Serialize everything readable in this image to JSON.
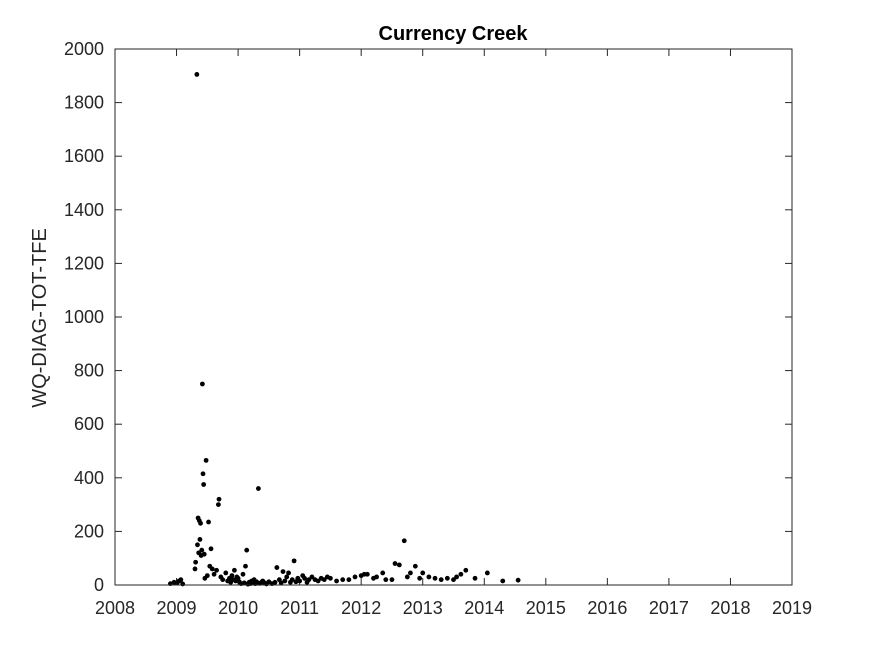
{
  "chart_data": {
    "type": "scatter",
    "title": "Currency Creek",
    "xlabel": "",
    "ylabel": "WQ-DIAG-TOT-TFE",
    "xlim": [
      2008,
      2019
    ],
    "ylim": [
      0,
      2000
    ],
    "xticks": [
      "2008",
      "2009",
      "2010",
      "2011",
      "2012",
      "2013",
      "2014",
      "2015",
      "2016",
      "2017",
      "2018",
      "2019"
    ],
    "yticks": [
      "0",
      "200",
      "400",
      "600",
      "800",
      "1000",
      "1200",
      "1400",
      "1600",
      "1800",
      "2000"
    ],
    "grid": false,
    "legend": "none",
    "marker_color": "#000000",
    "points": [
      [
        2008.9,
        5
      ],
      [
        2008.96,
        10
      ],
      [
        2009.01,
        8
      ],
      [
        2009.04,
        15
      ],
      [
        2009.07,
        20
      ],
      [
        2009.1,
        4
      ],
      [
        2009.3,
        60
      ],
      [
        2009.31,
        85
      ],
      [
        2009.33,
        1905
      ],
      [
        2009.34,
        150
      ],
      [
        2009.35,
        250
      ],
      [
        2009.36,
        120
      ],
      [
        2009.37,
        240
      ],
      [
        2009.38,
        170
      ],
      [
        2009.39,
        230
      ],
      [
        2009.4,
        110
      ],
      [
        2009.41,
        130
      ],
      [
        2009.42,
        750
      ],
      [
        2009.43,
        415
      ],
      [
        2009.44,
        375
      ],
      [
        2009.45,
        115
      ],
      [
        2009.46,
        25
      ],
      [
        2009.48,
        465
      ],
      [
        2009.5,
        35
      ],
      [
        2009.52,
        235
      ],
      [
        2009.54,
        70
      ],
      [
        2009.56,
        135
      ],
      [
        2009.58,
        60
      ],
      [
        2009.61,
        40
      ],
      [
        2009.65,
        55
      ],
      [
        2009.68,
        300
      ],
      [
        2009.69,
        320
      ],
      [
        2009.72,
        30
      ],
      [
        2009.75,
        20
      ],
      [
        2009.8,
        45
      ],
      [
        2009.83,
        15
      ],
      [
        2009.86,
        25
      ],
      [
        2009.88,
        10
      ],
      [
        2009.9,
        35
      ],
      [
        2009.92,
        20
      ],
      [
        2009.94,
        55
      ],
      [
        2009.96,
        15
      ],
      [
        2009.98,
        30
      ],
      [
        2010.0,
        25
      ],
      [
        2010.02,
        12
      ],
      [
        2010.05,
        5
      ],
      [
        2010.08,
        40
      ],
      [
        2010.1,
        8
      ],
      [
        2010.12,
        70
      ],
      [
        2010.14,
        130
      ],
      [
        2010.16,
        3
      ],
      [
        2010.18,
        10
      ],
      [
        2010.2,
        5
      ],
      [
        2010.22,
        15
      ],
      [
        2010.24,
        8
      ],
      [
        2010.26,
        20
      ],
      [
        2010.28,
        5
      ],
      [
        2010.3,
        12
      ],
      [
        2010.33,
        360
      ],
      [
        2010.35,
        6
      ],
      [
        2010.38,
        10
      ],
      [
        2010.4,
        15
      ],
      [
        2010.43,
        8
      ],
      [
        2010.46,
        4
      ],
      [
        2010.5,
        12
      ],
      [
        2010.55,
        5
      ],
      [
        2010.6,
        10
      ],
      [
        2010.63,
        65
      ],
      [
        2010.67,
        20
      ],
      [
        2010.7,
        8
      ],
      [
        2010.73,
        50
      ],
      [
        2010.76,
        15
      ],
      [
        2010.79,
        30
      ],
      [
        2010.82,
        45
      ],
      [
        2010.85,
        10
      ],
      [
        2010.88,
        20
      ],
      [
        2010.91,
        90
      ],
      [
        2010.94,
        12
      ],
      [
        2010.97,
        25
      ],
      [
        2011.0,
        15
      ],
      [
        2011.05,
        35
      ],
      [
        2011.08,
        25
      ],
      [
        2011.12,
        10
      ],
      [
        2011.15,
        20
      ],
      [
        2011.2,
        30
      ],
      [
        2011.25,
        20
      ],
      [
        2011.3,
        15
      ],
      [
        2011.35,
        25
      ],
      [
        2011.4,
        20
      ],
      [
        2011.45,
        30
      ],
      [
        2011.5,
        25
      ],
      [
        2011.6,
        15
      ],
      [
        2011.7,
        20
      ],
      [
        2011.8,
        20
      ],
      [
        2011.9,
        30
      ],
      [
        2012.0,
        35
      ],
      [
        2012.05,
        40
      ],
      [
        2012.1,
        40
      ],
      [
        2012.2,
        25
      ],
      [
        2012.25,
        30
      ],
      [
        2012.35,
        45
      ],
      [
        2012.4,
        20
      ],
      [
        2012.5,
        20
      ],
      [
        2012.55,
        80
      ],
      [
        2012.62,
        75
      ],
      [
        2012.7,
        165
      ],
      [
        2012.75,
        30
      ],
      [
        2012.8,
        45
      ],
      [
        2012.88,
        70
      ],
      [
        2012.95,
        25
      ],
      [
        2013.0,
        45
      ],
      [
        2013.1,
        30
      ],
      [
        2013.2,
        25
      ],
      [
        2013.3,
        20
      ],
      [
        2013.4,
        25
      ],
      [
        2013.5,
        20
      ],
      [
        2013.55,
        30
      ],
      [
        2013.62,
        40
      ],
      [
        2013.7,
        55
      ],
      [
        2013.85,
        25
      ],
      [
        2014.05,
        45
      ],
      [
        2014.3,
        15
      ],
      [
        2014.55,
        18
      ]
    ]
  }
}
